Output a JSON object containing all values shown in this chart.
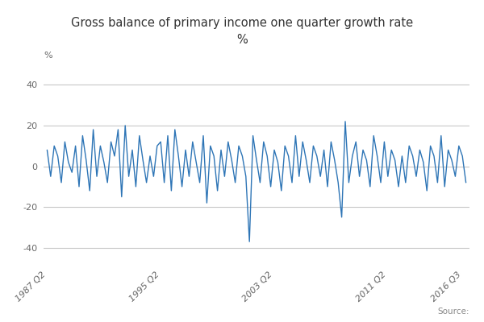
{
  "title_line1": "Gross balance of primary income one quarter growth rate",
  "title_line2": "%",
  "ylabel": "%",
  "line_color": "#2E75B6",
  "line_width": 1.0,
  "background_color": "#ffffff",
  "grid_color": "#c8c8c8",
  "legend_label": "Gross balance of primary income one quarter growth rate %",
  "yticks": [
    -40,
    -20,
    0,
    20,
    40
  ],
  "ylim": [
    -48,
    50
  ],
  "xtick_labels": [
    "1987 Q2",
    "1995 Q2",
    "2003 Q2",
    "2011 Q2",
    "2016 Q3"
  ],
  "xtick_positions": [
    0,
    32,
    64,
    96,
    117
  ],
  "source_text": "Source:",
  "values": [
    8,
    -5,
    10,
    5,
    -8,
    12,
    2,
    -3,
    10,
    -10,
    15,
    3,
    -12,
    18,
    -5,
    10,
    2,
    -8,
    12,
    5,
    18,
    -15,
    20,
    -5,
    8,
    -10,
    15,
    3,
    -8,
    5,
    -5,
    10,
    12,
    -8,
    15,
    -12,
    18,
    5,
    -10,
    8,
    -5,
    12,
    2,
    -8,
    15,
    -18,
    10,
    5,
    -12,
    8,
    -5,
    12,
    3,
    -8,
    10,
    5,
    -5,
    -37,
    15,
    3,
    -8,
    12,
    5,
    -10,
    8,
    2,
    -12,
    10,
    5,
    -8,
    15,
    -5,
    12,
    3,
    -8,
    10,
    5,
    -5,
    8,
    -10,
    12,
    3,
    -8,
    -25,
    22,
    -8,
    5,
    12,
    -5,
    8,
    3,
    -10,
    15,
    5,
    -8,
    12,
    -5,
    8,
    3,
    -10,
    5,
    -8,
    10,
    5,
    -5,
    8,
    2,
    -12,
    10,
    5,
    -8,
    15,
    -10,
    8,
    3,
    -5,
    10,
    5,
    -8
  ]
}
